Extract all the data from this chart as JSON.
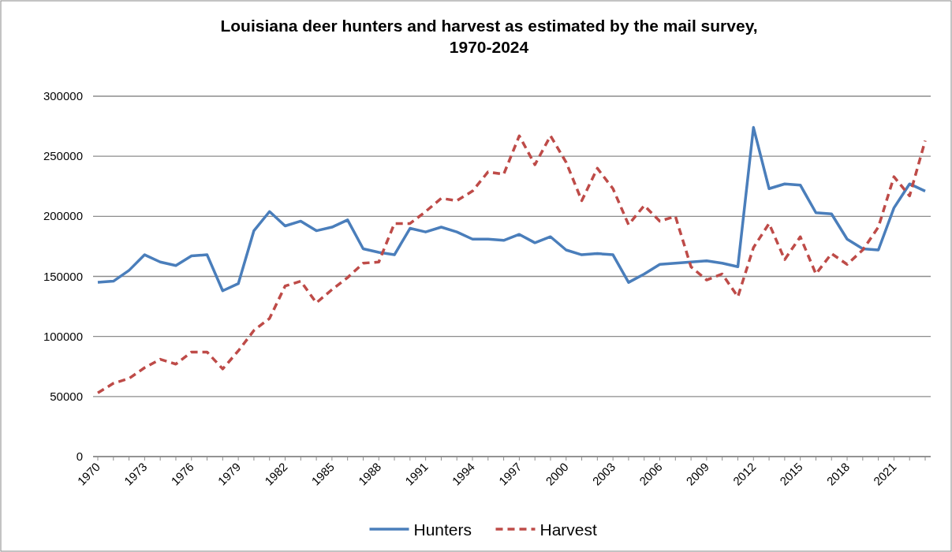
{
  "chart_data": {
    "type": "line",
    "title": "Louisiana deer hunters and harvest as estimated by the mail survey, 1970-2024",
    "categories": [
      "1970",
      null,
      null,
      "1973",
      null,
      null,
      "1976",
      null,
      null,
      "1979",
      null,
      null,
      "1982",
      null,
      null,
      "1985",
      null,
      null,
      "1988",
      null,
      null,
      "1991",
      null,
      null,
      "1994",
      null,
      null,
      "1997",
      null,
      null,
      "2000",
      null,
      null,
      "2003",
      null,
      null,
      "2006",
      null,
      null,
      "2009",
      null,
      null,
      "2012",
      null,
      null,
      "2015",
      null,
      null,
      "2018",
      null,
      null,
      "2021",
      null,
      null
    ],
    "series": [
      {
        "name": "Hunters",
        "color": "#4a7ebb",
        "line_style": "solid",
        "values": [
          145000,
          146000,
          155000,
          168000,
          162000,
          159000,
          167000,
          168000,
          138000,
          144000,
          188000,
          204000,
          192000,
          196000,
          188000,
          191000,
          197000,
          173000,
          170000,
          168000,
          190000,
          187000,
          191000,
          187000,
          181000,
          181000,
          180000,
          185000,
          178000,
          183000,
          172000,
          168000,
          169000,
          168000,
          145000,
          152000,
          160000,
          161000,
          162000,
          163000,
          161000,
          158000,
          274000,
          223000,
          227000,
          226000,
          203000,
          202000,
          181000,
          173000,
          172000,
          207000,
          227000,
          221000
        ]
      },
      {
        "name": "Harvest",
        "color": "#be4b48",
        "line_style": "dashed",
        "values": [
          53000,
          61000,
          65000,
          74000,
          81000,
          77000,
          87000,
          87000,
          73000,
          88000,
          105000,
          115000,
          142000,
          146000,
          128000,
          139000,
          149000,
          161000,
          162000,
          194000,
          194000,
          204000,
          215000,
          213000,
          221000,
          237000,
          235000,
          267000,
          243000,
          267000,
          245000,
          213000,
          240000,
          223000,
          193000,
          209000,
          196000,
          200000,
          158000,
          147000,
          152000,
          133000,
          174000,
          194000,
          164000,
          183000,
          152000,
          169000,
          160000,
          172000,
          191000,
          233000,
          217000,
          263000
        ]
      }
    ],
    "ylim": [
      0,
      300000
    ],
    "yticks": [
      0,
      50000,
      100000,
      150000,
      200000,
      250000,
      300000
    ],
    "grid": "y",
    "legend": "bottom",
    "marker": "none"
  }
}
